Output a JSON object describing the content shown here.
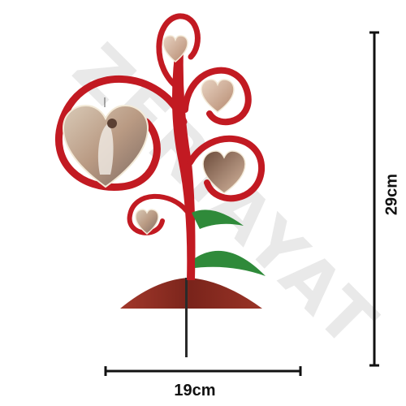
{
  "watermark": {
    "text": "ZERIAYAT"
  },
  "product": {
    "name": "heart photo tree stand",
    "frame_color": "#c21a22",
    "leaf_color": "#2f8a3a",
    "base_color": "#8e2c20",
    "photo_frames": 5
  },
  "dimensions": {
    "width_label": "19cm",
    "height_label": "29cm"
  }
}
